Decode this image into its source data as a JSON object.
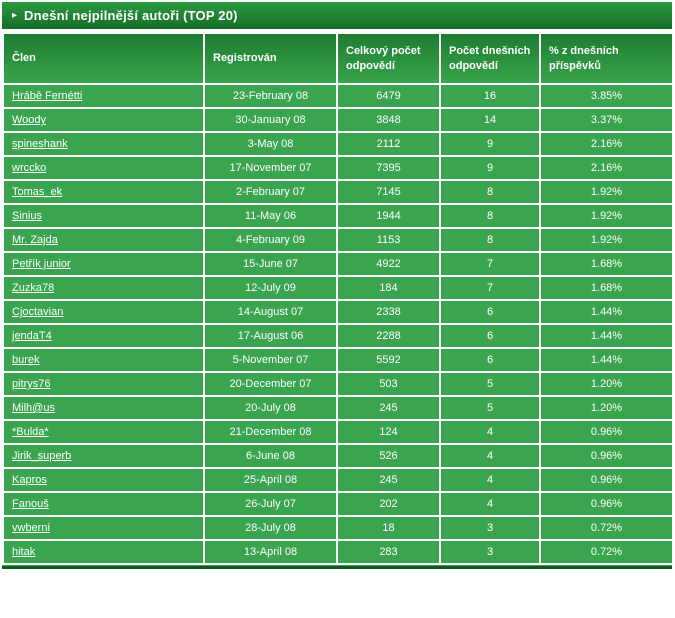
{
  "panel": {
    "title": "Dnešní nejpilnější autoři (TOP 20)",
    "arrow_icon": "▸"
  },
  "table": {
    "columns": [
      "Člen",
      "Registrován",
      "Celkový počet odpovědí",
      "Počet dnešních odpovědí",
      "% z dnešních příspěvků"
    ],
    "rows": [
      {
        "member": "Hrábě Fernétti",
        "registered": "23-February 08",
        "total": "6479",
        "today": "16",
        "percent": "3.85%"
      },
      {
        "member": "Woody",
        "registered": "30-January 08",
        "total": "3848",
        "today": "14",
        "percent": "3.37%"
      },
      {
        "member": "spineshank",
        "registered": "3-May 08",
        "total": "2112",
        "today": "9",
        "percent": "2.16%"
      },
      {
        "member": "wrccko",
        "registered": "17-November 07",
        "total": "7395",
        "today": "9",
        "percent": "2.16%"
      },
      {
        "member": "Tomas_ek",
        "registered": "2-February 07",
        "total": "7145",
        "today": "8",
        "percent": "1.92%"
      },
      {
        "member": "Sinius",
        "registered": "11-May 06",
        "total": "1944",
        "today": "8",
        "percent": "1.92%"
      },
      {
        "member": "Mr. Zajda",
        "registered": "4-February 09",
        "total": "1153",
        "today": "8",
        "percent": "1.92%"
      },
      {
        "member": "Petřík junior",
        "registered": "15-June 07",
        "total": "4922",
        "today": "7",
        "percent": "1.68%"
      },
      {
        "member": "Zuzka78",
        "registered": "12-July 09",
        "total": "184",
        "today": "7",
        "percent": "1.68%"
      },
      {
        "member": "Cjoctavian",
        "registered": "14-August 07",
        "total": "2338",
        "today": "6",
        "percent": "1.44%"
      },
      {
        "member": "jendaT4",
        "registered": "17-August 06",
        "total": "2288",
        "today": "6",
        "percent": "1.44%"
      },
      {
        "member": "burek",
        "registered": "5-November 07",
        "total": "5592",
        "today": "6",
        "percent": "1.44%"
      },
      {
        "member": "pitrys76",
        "registered": "20-December 07",
        "total": "503",
        "today": "5",
        "percent": "1.20%"
      },
      {
        "member": "Milh@us",
        "registered": "20-July 08",
        "total": "245",
        "today": "5",
        "percent": "1.20%"
      },
      {
        "member": "*Bulda*",
        "registered": "21-December 08",
        "total": "124",
        "today": "4",
        "percent": "0.96%"
      },
      {
        "member": "Jirik_superb",
        "registered": "6-June 08",
        "total": "526",
        "today": "4",
        "percent": "0.96%"
      },
      {
        "member": "Kapros",
        "registered": "25-April 08",
        "total": "245",
        "today": "4",
        "percent": "0.96%"
      },
      {
        "member": "Fanouš",
        "registered": "26-July 07",
        "total": "202",
        "today": "4",
        "percent": "0.96%"
      },
      {
        "member": "vwberni",
        "registered": "28-July 08",
        "total": "18",
        "today": "3",
        "percent": "0.72%"
      },
      {
        "member": "hitak",
        "registered": "13-April 08",
        "total": "283",
        "today": "3",
        "percent": "0.72%"
      }
    ]
  },
  "colors": {
    "title_bar_top": "#2d9943",
    "title_bar_bottom": "#156e28",
    "header_top": "#1e7c31",
    "header_bottom": "#38a44c",
    "row_bg": "#3aa54e",
    "border": "#ffffff",
    "footer_line": "#0d5a20",
    "text": "#ffffff"
  }
}
